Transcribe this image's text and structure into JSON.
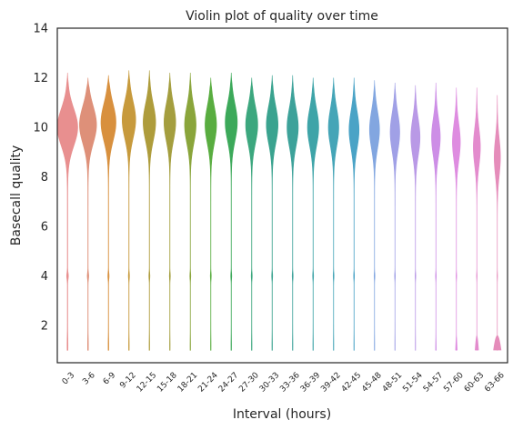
{
  "chart_data": {
    "type": "violin",
    "title": "Violin plot of quality over time",
    "xlabel": "Interval (hours)",
    "ylabel": "Basecall quality",
    "ylim": [
      0.5,
      14
    ],
    "yticks": [
      "2",
      "4",
      "6",
      "8",
      "10",
      "12",
      "14"
    ],
    "grid": false,
    "categories": [
      "0-3",
      "3-6",
      "6-9",
      "9-12",
      "12-15",
      "15-18",
      "18-21",
      "21-24",
      "24-27",
      "27-30",
      "30-33",
      "33-36",
      "36-39",
      "39-42",
      "42-45",
      "45-48",
      "48-51",
      "51-54",
      "54-57",
      "57-60",
      "60-63",
      "63-66"
    ],
    "colors": [
      "#e88f8f",
      "#de9079",
      "#d8903e",
      "#c79a3c",
      "#ae9c3b",
      "#a49e3e",
      "#8aa53b",
      "#59ad40",
      "#3ca95a",
      "#3ca77e",
      "#3aa38f",
      "#3da29a",
      "#3ea4a8",
      "#45a5b7",
      "#4aa3c6",
      "#82a6e0",
      "#a0a0e6",
      "#b999e6",
      "#cd8ee6",
      "#de8ce0",
      "#e38bcd",
      "#e58cba"
    ],
    "violins": [
      {
        "min": 1.0,
        "max": 12.2,
        "median": 10.0,
        "width": 0.98
      },
      {
        "min": 1.0,
        "max": 12.0,
        "median": 10.1,
        "width": 0.82
      },
      {
        "min": 1.0,
        "max": 12.1,
        "median": 10.2,
        "width": 0.72
      },
      {
        "min": 1.0,
        "max": 12.3,
        "median": 10.3,
        "width": 0.65
      },
      {
        "min": 1.0,
        "max": 12.3,
        "median": 10.2,
        "width": 0.6
      },
      {
        "min": 1.0,
        "max": 12.2,
        "median": 10.2,
        "width": 0.56
      },
      {
        "min": 1.0,
        "max": 12.2,
        "median": 10.1,
        "width": 0.55
      },
      {
        "min": 1.0,
        "max": 12.0,
        "median": 10.1,
        "width": 0.55
      },
      {
        "min": 1.0,
        "max": 12.2,
        "median": 10.2,
        "width": 0.58
      },
      {
        "min": 1.0,
        "max": 12.0,
        "median": 10.1,
        "width": 0.58
      },
      {
        "min": 1.0,
        "max": 12.1,
        "median": 10.1,
        "width": 0.56
      },
      {
        "min": 1.0,
        "max": 12.1,
        "median": 10.0,
        "width": 0.54
      },
      {
        "min": 1.0,
        "max": 12.0,
        "median": 10.0,
        "width": 0.54
      },
      {
        "min": 1.0,
        "max": 12.0,
        "median": 10.0,
        "width": 0.5
      },
      {
        "min": 1.0,
        "max": 12.0,
        "median": 9.9,
        "width": 0.48
      },
      {
        "min": 1.0,
        "max": 11.9,
        "median": 9.9,
        "width": 0.48
      },
      {
        "min": 1.0,
        "max": 11.8,
        "median": 9.8,
        "width": 0.46
      },
      {
        "min": 1.0,
        "max": 11.7,
        "median": 9.6,
        "width": 0.44
      },
      {
        "min": 1.0,
        "max": 11.8,
        "median": 9.6,
        "width": 0.42
      },
      {
        "min": 1.0,
        "max": 11.6,
        "median": 9.4,
        "width": 0.38
      },
      {
        "min": 1.0,
        "max": 11.6,
        "median": 9.2,
        "width": 0.34
      },
      {
        "min": 1.0,
        "max": 11.3,
        "median": 8.8,
        "width": 0.3
      }
    ]
  }
}
